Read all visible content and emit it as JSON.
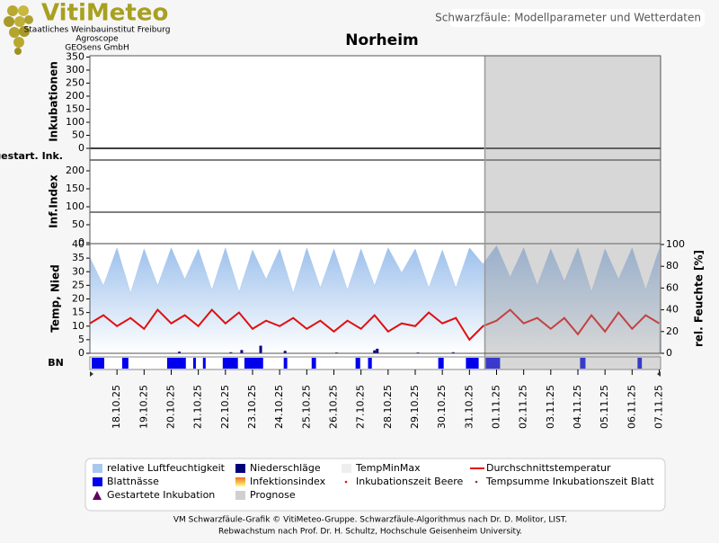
{
  "header": {
    "logo": "VitiMeteo",
    "org_lines": [
      "Staatliches Weinbauinstitut Freiburg",
      "Agroscope",
      "GEOsens GmbH"
    ],
    "page_title": "Schwarzfäule: Modellparameter und Wetterdaten"
  },
  "chart_data": {
    "type": "weather-panels",
    "title": "Norheim",
    "xlim": [
      0,
      21.05
    ],
    "xticks": [
      {
        "value": 1,
        "label": "18.10.25"
      },
      {
        "value": 2,
        "label": "19.10.25"
      },
      {
        "value": 3,
        "label": "20.10.25"
      },
      {
        "value": 4,
        "label": "21.10.25"
      },
      {
        "value": 5,
        "label": "22.10.25"
      },
      {
        "value": 6,
        "label": "23.10.25"
      },
      {
        "value": 7,
        "label": "24.10.25"
      },
      {
        "value": 8,
        "label": "25.10.25"
      },
      {
        "value": 9,
        "label": "26.10.25"
      },
      {
        "value": 10,
        "label": "27.10.25"
      },
      {
        "value": 11,
        "label": "28.10.25"
      },
      {
        "value": 12,
        "label": "29.10.25"
      },
      {
        "value": 13,
        "label": "30.10.25"
      },
      {
        "value": 14,
        "label": "31.10.25"
      },
      {
        "value": 15,
        "label": "01.11.25"
      },
      {
        "value": 16,
        "label": "02.11.25"
      },
      {
        "value": 17,
        "label": "03.11.25"
      },
      {
        "value": 18,
        "label": "04.11.25"
      },
      {
        "value": 19,
        "label": "05.11.25"
      },
      {
        "value": 20,
        "label": "06.11.25"
      },
      {
        "value": 21,
        "label": "07.11.25"
      }
    ],
    "forecast_start": 14.57,
    "panels": {
      "incubation": {
        "ylabel": "Inkubationen",
        "ylim": [
          0,
          355
        ],
        "yticks": [
          0,
          50,
          100,
          150,
          200,
          250,
          300,
          350
        ]
      },
      "started": {
        "ylabel": "gestart. Ink."
      },
      "infection": {
        "ylabel": "Inf.Index",
        "ylim": [
          0,
          230
        ],
        "yticks": [
          0,
          50,
          100,
          150,
          200
        ],
        "reference_line": 85
      },
      "weather": {
        "ylabel": "Temp, Nied",
        "ylim": [
          0,
          40
        ],
        "yticks": [
          0,
          5,
          10,
          15,
          20,
          25,
          30,
          35,
          40
        ],
        "y2label": "rel. Feuchte [%]",
        "y2lim": [
          0,
          100
        ],
        "y2ticks": [
          0,
          20,
          40,
          60,
          80,
          100
        ],
        "x": [
          0,
          0.5,
          1,
          1.5,
          2,
          2.5,
          3,
          3.5,
          4,
          4.5,
          5,
          5.5,
          6,
          6.5,
          7,
          7.5,
          8,
          8.5,
          9,
          9.5,
          10,
          10.5,
          11,
          11.5,
          12,
          12.5,
          13,
          13.5,
          14,
          14.5,
          15,
          15.5,
          16,
          16.5,
          17,
          17.5,
          18,
          18.5,
          19,
          19.5,
          20,
          20.5,
          21
        ],
        "humidity": {
          "axis": "y2",
          "color": "#a8c8ee",
          "values": [
            88,
            62,
            97,
            55,
            96,
            62,
            97,
            68,
            96,
            58,
            97,
            56,
            95,
            68,
            96,
            55,
            97,
            60,
            96,
            58,
            96,
            62,
            97,
            74,
            96,
            60,
            95,
            60,
            97,
            82,
            99,
            70,
            97,
            62,
            96,
            66,
            97,
            56,
            96,
            68,
            97,
            58,
            96
          ]
        },
        "temperature": {
          "color": "#e01010",
          "values": [
            11,
            14,
            10,
            13,
            9,
            16,
            11,
            14,
            10,
            16,
            11,
            15,
            9,
            12,
            10,
            13,
            9,
            12,
            8,
            12,
            9,
            14,
            8,
            11,
            10,
            15,
            11,
            13,
            5,
            10,
            12,
            16,
            11,
            13,
            9,
            13,
            7,
            14,
            8,
            15,
            9,
            14,
            11
          ]
        },
        "precipitation": {
          "color": "#00007a",
          "x": [
            3.3,
            5.2,
            5.6,
            6.3,
            7.2,
            9.1,
            10.5,
            10.6,
            12.1,
            13.4
          ],
          "values": [
            0.6,
            0.4,
            1.2,
            2.8,
            0.9,
            0.3,
            1.1,
            1.7,
            0.3,
            0.4
          ]
        }
      },
      "wetness": {
        "ylabel": "BN",
        "color": "#0000ee",
        "starts": [
          0.07,
          1.19,
          2.85,
          3.81,
          4.17,
          4.9,
          5.7,
          7.15,
          8.18,
          9.8,
          10.26,
          12.85,
          13.87,
          14.6,
          18.08,
          20.2
        ],
        "ends": [
          0.53,
          1.42,
          3.54,
          3.91,
          4.27,
          5.46,
          6.39,
          7.28,
          8.34,
          9.97,
          10.4,
          13.05,
          14.34,
          15.13,
          18.28,
          20.36
        ]
      }
    },
    "legend": [
      {
        "name": "relative Luftfeuchtigkeit",
        "color": "#a8c8ee",
        "symbol": "box"
      },
      {
        "name": "Niederschläge",
        "color": "#00007a",
        "symbol": "box"
      },
      {
        "name": "TempMinMax",
        "color": "#eeeeee",
        "symbol": "box"
      },
      {
        "name": "Durchschnittstemperatur",
        "color": "#e01010",
        "symbol": "line"
      },
      {
        "name": "Blattnässe",
        "color": "#0000ee",
        "symbol": "box"
      },
      {
        "name": "Infektionsindex",
        "color": "#f0b020",
        "symbol": "gradient"
      },
      {
        "name": "Inkubationszeit Beere",
        "color": "#e01010",
        "symbol": "dot"
      },
      {
        "name": "Tempsumme Inkubationszeit Blatt",
        "color": "#804040",
        "symbol": "dot"
      },
      {
        "name": "Gestartete Inkubation",
        "color": "#600060",
        "symbol": "triangle"
      },
      {
        "name": "Prognose",
        "color": "#d0d0d0",
        "symbol": "box"
      }
    ]
  },
  "footer": {
    "lines": [
      "VM Schwarzfäule-Grafik © VitiMeteo-Gruppe. Schwarzfäule-Algorithmus nach Dr. D. Molitor, LIST.",
      "Rebwachstum nach Prof. Dr. H. Schultz, Hochschule Geisenheim University."
    ]
  }
}
